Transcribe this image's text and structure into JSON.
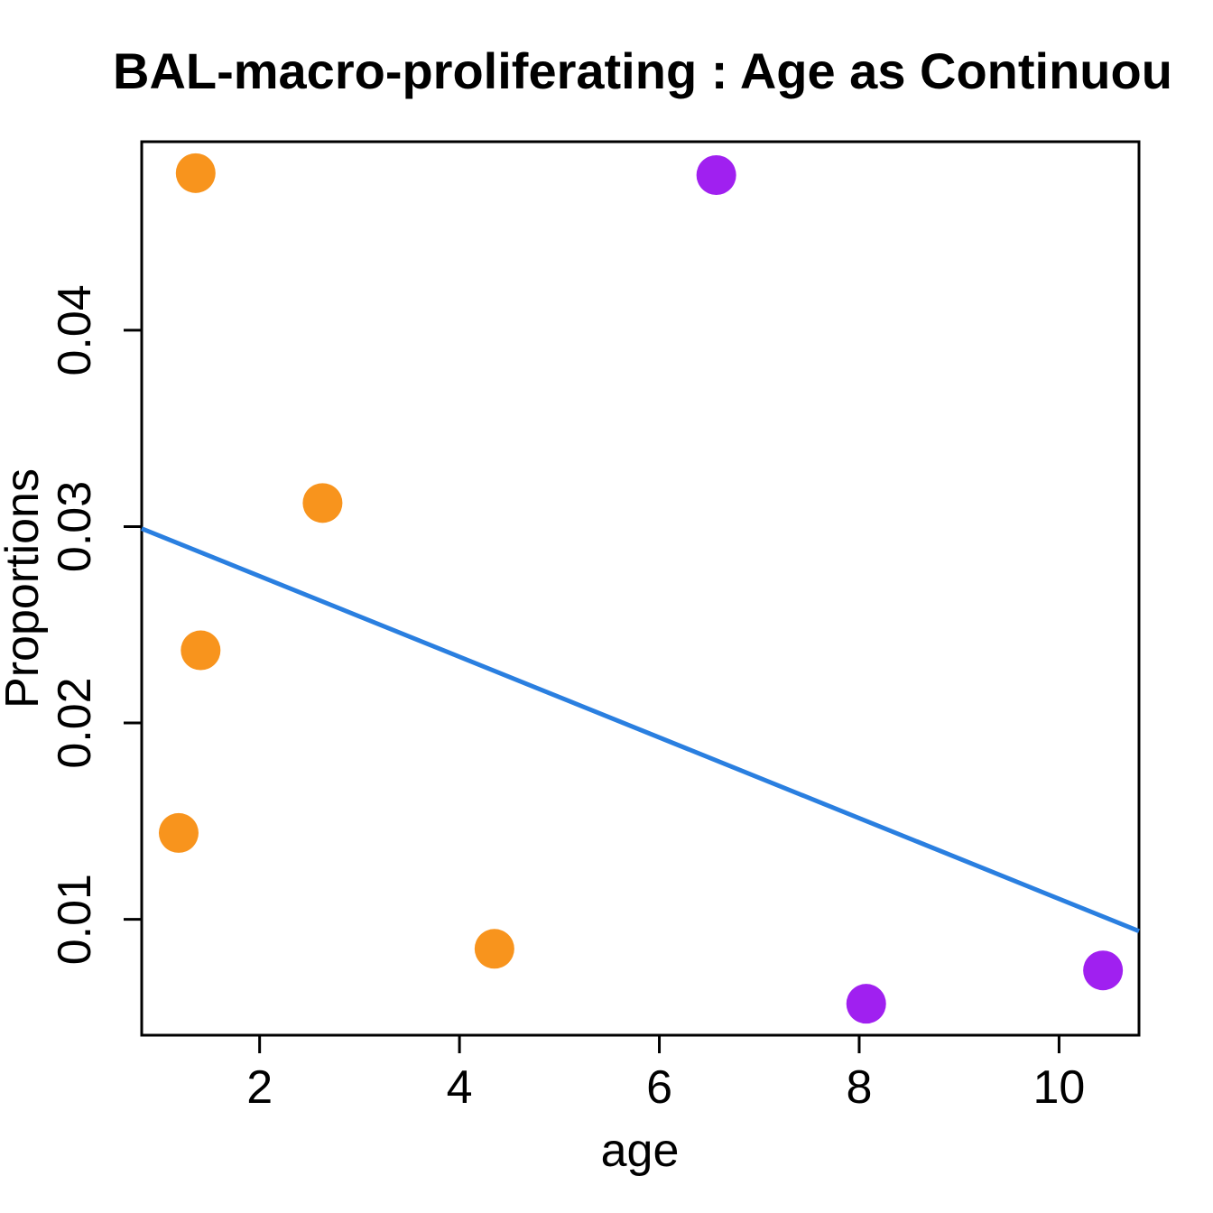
{
  "page": {
    "background_color": "#ffffff",
    "text_color": "#000000"
  },
  "chart_data": {
    "type": "scatter",
    "title": "BAL-macro-proliferating : Age as Continuou",
    "xlabel": "age",
    "ylabel": "Proportions",
    "xlim": [
      0.82,
      10.8
    ],
    "ylim": [
      0.0041,
      0.0496
    ],
    "x_ticks": [
      2,
      4,
      6,
      8,
      10
    ],
    "x_tick_labels": [
      "2",
      "4",
      "6",
      "8",
      "10"
    ],
    "y_ticks": [
      0.01,
      0.02,
      0.03,
      0.04
    ],
    "y_tick_labels": [
      "0.01",
      "0.02",
      "0.03",
      "0.04"
    ],
    "grid": false,
    "legend": null,
    "series": [
      {
        "name": "orange-group",
        "color": "#F8941D",
        "marker": "circle",
        "points": [
          {
            "x": 1.36,
            "y": 0.048
          },
          {
            "x": 2.63,
            "y": 0.0312
          },
          {
            "x": 1.41,
            "y": 0.0237
          },
          {
            "x": 1.19,
            "y": 0.0144
          },
          {
            "x": 4.35,
            "y": 0.0085
          }
        ]
      },
      {
        "name": "purple-group",
        "color": "#A020F0",
        "marker": "circle",
        "points": [
          {
            "x": 6.57,
            "y": 0.0479
          },
          {
            "x": 8.07,
            "y": 0.0057
          },
          {
            "x": 10.44,
            "y": 0.0074
          }
        ]
      }
    ],
    "fit_line": {
      "color": "#2A7FE0",
      "x1": 0.82,
      "y1": 0.0299,
      "x2": 10.8,
      "y2": 0.0094
    }
  }
}
